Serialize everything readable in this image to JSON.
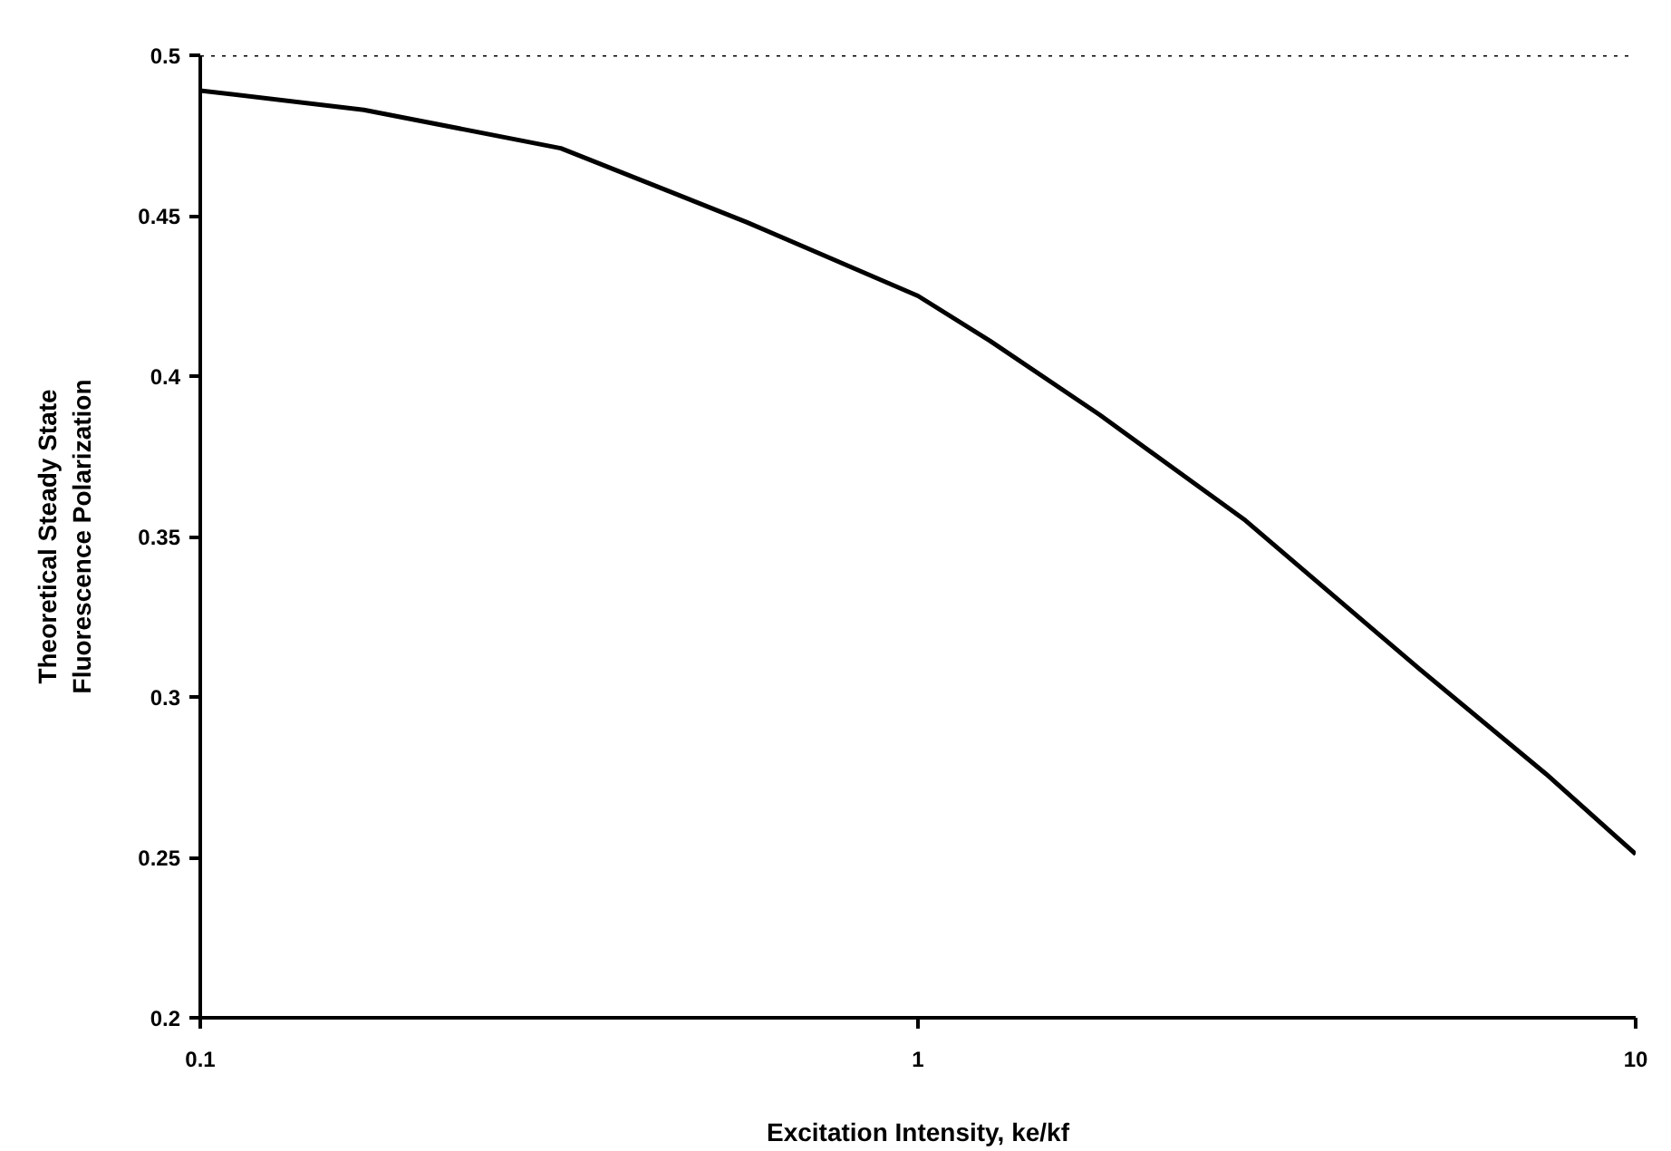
{
  "chart_data": {
    "type": "line",
    "xlabel": "Excitation Intensity, ke/kf",
    "ylabel": "Theoretical Steady State\nFluorescence Polarization",
    "x": [
      0.1,
      0.169,
      0.318,
      0.577,
      1,
      1.26,
      1.79,
      2.86,
      4.98,
      7.5,
      10
    ],
    "series": [
      {
        "color": "#000000",
        "values": [
          0.489,
          0.483,
          0.471,
          0.448,
          0.425,
          0.411,
          0.388,
          0.355,
          0.309,
          0.276,
          0.251
        ]
      }
    ],
    "log": "x",
    "xlim": [
      0.1,
      10
    ],
    "xticks": [
      0.1,
      1,
      10
    ],
    "ylim": [
      0.2,
      0.5
    ],
    "yticks": [
      0.2,
      0.25,
      0.3,
      0.35,
      0.4,
      0.45,
      0.5
    ],
    "ref_lines": [
      {
        "axis": "y",
        "value": 0.5,
        "label": null,
        "line_style": "dotted",
        "color": "#000000"
      }
    ],
    "line_style": "solid"
  }
}
